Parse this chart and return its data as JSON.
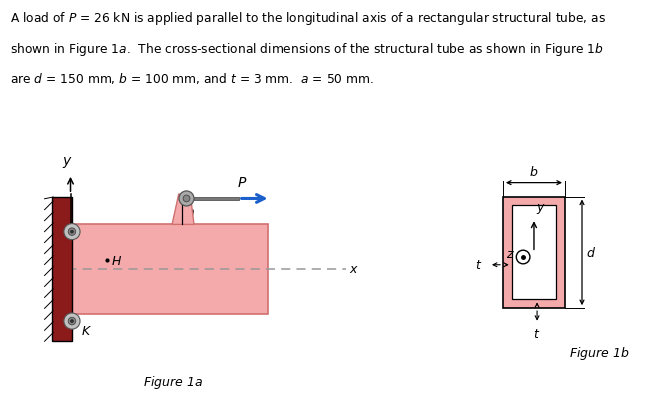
{
  "fig_width": 6.92,
  "fig_height": 3.74,
  "bg_color": "#ffffff",
  "tube_fill": "#f4aaaa",
  "tube_edge": "#d07070",
  "wall_fill": "#8b1a1a",
  "wall_hatch_color": "#000000",
  "dashed_color": "#999999",
  "arrow_color": "#1a5fcc",
  "bolt_color": "#aaaaaa",
  "pin_color": "#888888",
  "rod_color": "#777777",
  "text_color": "#000000",
  "title_lines": [
    "A load of $P$ = 26 kN is applied parallel to the longitudinal axis of a rectangular structural tube, as",
    "shown in Figure 1$a$.  The cross-sectional dimensions of the structural tube as shown in Figure 1$b$",
    "are $d$ = 150 mm, $b$ = 100 mm, and $t$ = 3 mm.  $a$ = 50 mm."
  ],
  "title_fontsize": 8.8,
  "fig1a_caption": "Figure 1$a$",
  "fig1b_caption": "Figure 1$b$"
}
